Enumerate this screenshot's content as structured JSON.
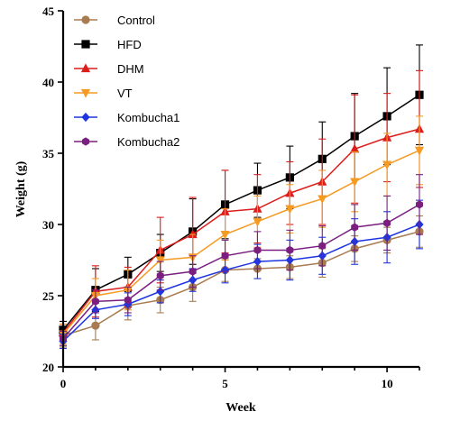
{
  "chart_data": {
    "type": "line",
    "title": "",
    "xlabel": "Week",
    "ylabel": "Weight (g)",
    "xlim": [
      0,
      11
    ],
    "ylim": [
      20,
      45
    ],
    "xticks": [
      0,
      5,
      10
    ],
    "yticks": [
      20,
      25,
      30,
      35,
      40,
      45
    ],
    "legend_position": "top-left",
    "grid": false,
    "x": [
      0,
      1,
      2,
      3,
      4,
      5,
      6,
      7,
      8,
      9,
      10,
      11
    ],
    "series": [
      {
        "name": "Control",
        "color": "#a87c50",
        "marker": "circle",
        "values": [
          22.2,
          22.9,
          24.3,
          24.7,
          25.6,
          26.8,
          26.9,
          27.0,
          27.3,
          28.3,
          28.9,
          29.5
        ],
        "errors": [
          0.8,
          1.0,
          1.0,
          0.9,
          1.0,
          0.8,
          0.7,
          0.8,
          1.0,
          0.9,
          0.9,
          1.1
        ]
      },
      {
        "name": "HFD",
        "color": "#000000",
        "marker": "square",
        "values": [
          22.6,
          25.4,
          26.5,
          28.0,
          29.5,
          31.4,
          32.4,
          33.3,
          34.6,
          36.2,
          37.6,
          39.1
        ],
        "errors": [
          0.6,
          1.5,
          1.2,
          1.3,
          2.3,
          2.4,
          1.9,
          2.2,
          2.6,
          3.0,
          3.4,
          3.5
        ]
      },
      {
        "name": "DHM",
        "color": "#dd1c1c",
        "marker": "triangle-up",
        "values": [
          22.4,
          25.3,
          25.6,
          28.2,
          29.3,
          30.9,
          31.1,
          32.2,
          33.0,
          35.3,
          36.1,
          36.7
        ],
        "errors": [
          0.6,
          1.8,
          1.4,
          2.3,
          2.6,
          2.9,
          2.4,
          2.2,
          3.0,
          3.8,
          3.1,
          4.1
        ]
      },
      {
        "name": "VT",
        "color": "#f59a23",
        "marker": "triangle-down",
        "values": [
          22.3,
          25.0,
          25.4,
          27.5,
          27.7,
          29.3,
          30.2,
          31.1,
          31.8,
          33.0,
          34.2,
          35.2
        ],
        "errors": [
          0.7,
          1.2,
          1.4,
          1.4,
          1.6,
          1.8,
          1.8,
          1.7,
          2.0,
          2.1,
          2.2,
          2.4
        ]
      },
      {
        "name": "Kombucha1",
        "color": "#1f35e0",
        "marker": "diamond",
        "values": [
          21.8,
          24.0,
          24.4,
          25.3,
          26.1,
          26.8,
          27.4,
          27.5,
          27.8,
          28.8,
          29.1,
          30.0
        ],
        "errors": [
          0.5,
          0.6,
          0.8,
          0.8,
          0.8,
          0.9,
          1.2,
          1.4,
          1.3,
          1.6,
          1.8,
          1.7
        ]
      },
      {
        "name": "Kombucha2",
        "color": "#7a1f80",
        "marker": "hexagon",
        "values": [
          22.0,
          24.6,
          24.7,
          26.4,
          26.7,
          27.8,
          28.2,
          28.2,
          28.5,
          29.8,
          30.1,
          31.4
        ],
        "errors": [
          0.5,
          0.8,
          0.9,
          1.0,
          1.1,
          1.1,
          1.3,
          1.4,
          1.4,
          1.6,
          1.9,
          2.1
        ]
      }
    ]
  }
}
